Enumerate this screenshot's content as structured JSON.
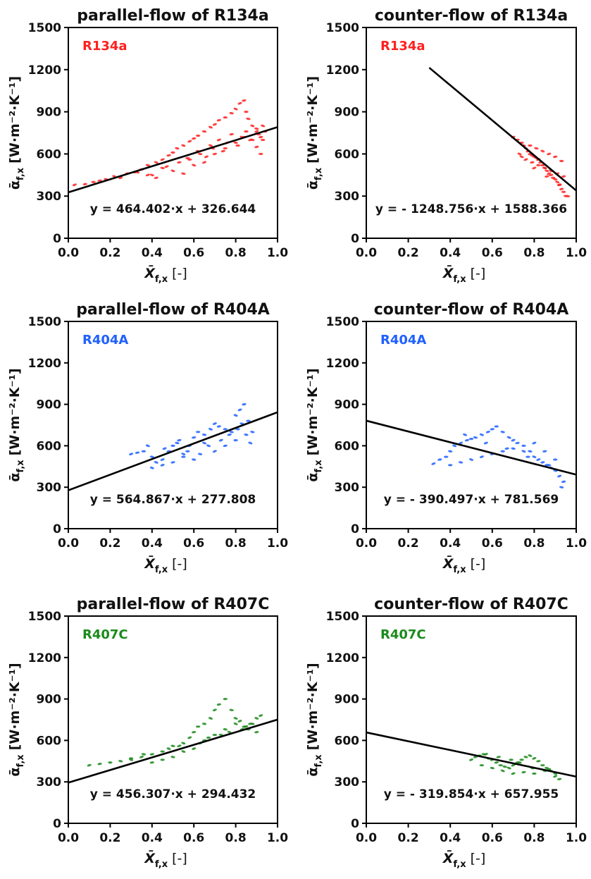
{
  "chart_data": [
    {
      "type": "scatter",
      "title": "parallel-flow of R134a",
      "legend": "R134a",
      "color": "#ff2020",
      "xlabel": "X̄",
      "xlabel_sub": "f,x",
      "xlabel_unit": "[-]",
      "ylabel": "ᾱ",
      "ylabel_sub": "f,x",
      "ylabel_unit": "[W·m⁻²·K⁻¹]",
      "xlim": [
        0,
        1
      ],
      "ylim": [
        0,
        1500
      ],
      "x_ticks": [
        "0.0",
        "0.2",
        "0.4",
        "0.6",
        "0.8",
        "1.0"
      ],
      "y_ticks": [
        "0",
        "300",
        "600",
        "900",
        "1200",
        "1500"
      ],
      "fit": {
        "slope": 464.402,
        "intercept": 326.644,
        "x_range": [
          0.0,
          1.0
        ]
      },
      "equation": "y = 464.402·x + 326.644",
      "series": [
        {
          "x": [
            0.03,
            0.08,
            0.12,
            0.18,
            0.22,
            0.28,
            0.32,
            0.35,
            0.38,
            0.42,
            0.45,
            0.48,
            0.5,
            0.52,
            0.55,
            0.58,
            0.6,
            0.62,
            0.65,
            0.68,
            0.7,
            0.72,
            0.75,
            0.78,
            0.8,
            0.82,
            0.84,
            0.85,
            0.86,
            0.88,
            0.9,
            0.92,
            0.93,
            0.55,
            0.6,
            0.65,
            0.7,
            0.75,
            0.8,
            0.83,
            0.87,
            0.9,
            0.92,
            0.45,
            0.5,
            0.38,
            0.42,
            0.58,
            0.62,
            0.68,
            0.72,
            0.78,
            0.85,
            0.9,
            0.93,
            0.66,
            0.74,
            0.81,
            0.88,
            0.33,
            0.47,
            0.53,
            0.57,
            0.63,
            0.69,
            0.76,
            0.84,
            0.91,
            0.94,
            0.4,
            0.25,
            0.15
          ],
          "y": [
            380,
            385,
            400,
            420,
            440,
            460,
            470,
            490,
            520,
            540,
            560,
            590,
            610,
            640,
            660,
            690,
            710,
            730,
            760,
            790,
            810,
            840,
            860,
            890,
            920,
            960,
            980,
            900,
            850,
            800,
            760,
            720,
            700,
            460,
            520,
            540,
            600,
            640,
            680,
            720,
            700,
            650,
            600,
            500,
            480,
            450,
            430,
            560,
            620,
            660,
            700,
            740,
            760,
            780,
            800,
            580,
            620,
            660,
            700,
            470,
            510,
            540,
            570,
            600,
            640,
            680,
            720,
            740,
            760,
            450,
            430,
            410
          ]
        }
      ]
    },
    {
      "type": "scatter",
      "title": "counter-flow of R134a",
      "legend": "R134a",
      "color": "#ff2020",
      "xlabel": "X̄",
      "xlabel_sub": "f,x",
      "xlabel_unit": "[-]",
      "ylabel": "ᾱ",
      "ylabel_sub": "f,x",
      "ylabel_unit": "[W·m⁻²·K⁻¹]",
      "xlim": [
        0,
        1
      ],
      "ylim": [
        0,
        1500
      ],
      "x_ticks": [
        "0.0",
        "0.2",
        "0.4",
        "0.6",
        "0.8",
        "1.0"
      ],
      "y_ticks": [
        "0",
        "300",
        "600",
        "900",
        "1200",
        "1500"
      ],
      "fit": {
        "slope": -1248.756,
        "intercept": 1588.366,
        "x_range": [
          0.3,
          1.0
        ]
      },
      "equation": "y = - 1248.756·x + 1588.366",
      "series": [
        {
          "x": [
            0.7,
            0.72,
            0.74,
            0.75,
            0.76,
            0.77,
            0.78,
            0.79,
            0.8,
            0.81,
            0.82,
            0.83,
            0.84,
            0.85,
            0.86,
            0.87,
            0.88,
            0.89,
            0.9,
            0.91,
            0.92,
            0.93,
            0.94,
            0.95,
            0.73,
            0.76,
            0.79,
            0.82,
            0.85,
            0.88,
            0.91,
            0.94,
            0.78,
            0.81,
            0.84,
            0.87,
            0.9,
            0.93,
            0.96,
            0.74,
            0.8,
            0.86,
            0.92
          ],
          "y": [
            720,
            700,
            680,
            660,
            640,
            620,
            600,
            590,
            580,
            570,
            560,
            540,
            520,
            500,
            480,
            460,
            450,
            430,
            420,
            400,
            380,
            350,
            330,
            300,
            600,
            560,
            540,
            520,
            500,
            480,
            460,
            440,
            660,
            640,
            620,
            600,
            580,
            550,
            300,
            580,
            500,
            440,
            380
          ]
        }
      ]
    },
    {
      "type": "scatter",
      "title": "parallel-flow of R404A",
      "legend": "R404A",
      "color": "#2060ff",
      "xlabel": "X̄",
      "xlabel_sub": "f,x",
      "xlabel_unit": "[-]",
      "ylabel": "ᾱ",
      "ylabel_sub": "f,x",
      "ylabel_unit": "[W·m⁻²·K⁻¹]",
      "xlim": [
        0,
        1
      ],
      "ylim": [
        0,
        1500
      ],
      "x_ticks": [
        "0.0",
        "0.2",
        "0.4",
        "0.6",
        "0.8",
        "1.0"
      ],
      "y_ticks": [
        "0",
        "300",
        "600",
        "900",
        "1200",
        "1500"
      ],
      "fit": {
        "slope": 564.867,
        "intercept": 277.808,
        "x_range": [
          0.0,
          1.0
        ]
      },
      "equation": "y = 564.867·x + 277.808",
      "series": [
        {
          "x": [
            0.3,
            0.33,
            0.36,
            0.4,
            0.42,
            0.45,
            0.48,
            0.5,
            0.52,
            0.55,
            0.58,
            0.6,
            0.62,
            0.65,
            0.68,
            0.7,
            0.72,
            0.75,
            0.78,
            0.8,
            0.82,
            0.84,
            0.86,
            0.88,
            0.4,
            0.45,
            0.5,
            0.55,
            0.6,
            0.65,
            0.7,
            0.75,
            0.8,
            0.85,
            0.38,
            0.46,
            0.53,
            0.57,
            0.63,
            0.67,
            0.73,
            0.77,
            0.81,
            0.83,
            0.87
          ],
          "y": [
            540,
            550,
            560,
            520,
            480,
            500,
            560,
            600,
            620,
            540,
            600,
            660,
            700,
            680,
            720,
            760,
            740,
            720,
            700,
            820,
            860,
            900,
            780,
            700,
            440,
            460,
            480,
            520,
            500,
            620,
            560,
            600,
            640,
            680,
            600,
            580,
            640,
            560,
            540,
            600,
            640,
            680,
            720,
            760,
            620
          ]
        }
      ]
    },
    {
      "type": "scatter",
      "title": "counter-flow of R404A",
      "legend": "R404A",
      "color": "#2060ff",
      "xlabel": "X̄",
      "xlabel_sub": "f,x",
      "xlabel_unit": "[-]",
      "ylabel": "ᾱ",
      "ylabel_sub": "f,x",
      "ylabel_unit": "[W·m⁻²·K⁻¹]",
      "xlim": [
        0,
        1
      ],
      "ylim": [
        0,
        1500
      ],
      "x_ticks": [
        "0.0",
        "0.2",
        "0.4",
        "0.6",
        "0.8",
        "1.0"
      ],
      "y_ticks": [
        "0",
        "300",
        "600",
        "900",
        "1200",
        "1500"
      ],
      "fit": {
        "slope": -390.497,
        "intercept": 781.569,
        "x_range": [
          0.0,
          1.0
        ]
      },
      "equation": "y = - 390.497·x + 781.569",
      "series": [
        {
          "x": [
            0.32,
            0.35,
            0.38,
            0.4,
            0.42,
            0.45,
            0.48,
            0.5,
            0.52,
            0.55,
            0.58,
            0.6,
            0.62,
            0.65,
            0.68,
            0.7,
            0.72,
            0.75,
            0.78,
            0.8,
            0.82,
            0.84,
            0.86,
            0.88,
            0.9,
            0.92,
            0.94,
            0.4,
            0.45,
            0.5,
            0.55,
            0.6,
            0.65,
            0.7,
            0.75,
            0.8,
            0.85,
            0.9,
            0.93,
            0.47,
            0.57,
            0.67,
            0.77,
            0.87
          ],
          "y": [
            470,
            500,
            520,
            560,
            600,
            620,
            640,
            650,
            660,
            680,
            700,
            720,
            740,
            700,
            660,
            640,
            620,
            600,
            560,
            520,
            500,
            480,
            460,
            440,
            420,
            380,
            340,
            460,
            480,
            500,
            520,
            540,
            560,
            580,
            560,
            620,
            560,
            500,
            300,
            680,
            620,
            580,
            520,
            460
          ]
        }
      ]
    },
    {
      "type": "scatter",
      "title": "parallel-flow of R407C",
      "legend": "R407C",
      "color": "#1a8a1a",
      "xlabel": "X̄",
      "xlabel_sub": "f,x",
      "xlabel_unit": "[-]",
      "ylabel": "ᾱ",
      "ylabel_sub": "f,x",
      "ylabel_unit": "[W·m⁻²·K⁻¹]",
      "xlim": [
        0,
        1
      ],
      "ylim": [
        0,
        1500
      ],
      "x_ticks": [
        "0.0",
        "0.2",
        "0.4",
        "0.6",
        "0.8",
        "1.0"
      ],
      "y_ticks": [
        "0",
        "300",
        "600",
        "900",
        "1200",
        "1500"
      ],
      "fit": {
        "slope": 456.307,
        "intercept": 294.432,
        "x_range": [
          0.0,
          1.0
        ]
      },
      "equation": "y = 456.307·x + 294.432",
      "series": [
        {
          "x": [
            0.1,
            0.15,
            0.2,
            0.25,
            0.3,
            0.35,
            0.4,
            0.45,
            0.5,
            0.55,
            0.58,
            0.6,
            0.62,
            0.65,
            0.68,
            0.7,
            0.72,
            0.75,
            0.78,
            0.8,
            0.82,
            0.84,
            0.86,
            0.88,
            0.9,
            0.92,
            0.4,
            0.45,
            0.5,
            0.55,
            0.6,
            0.65,
            0.7,
            0.75,
            0.8,
            0.85,
            0.9,
            0.3,
            0.36,
            0.48,
            0.53,
            0.63,
            0.67,
            0.73,
            0.77,
            0.83,
            0.87
          ],
          "y": [
            420,
            430,
            440,
            450,
            460,
            480,
            500,
            520,
            560,
            580,
            620,
            660,
            700,
            720,
            760,
            820,
            860,
            900,
            820,
            760,
            740,
            700,
            680,
            720,
            760,
            780,
            440,
            460,
            480,
            520,
            540,
            600,
            640,
            680,
            720,
            700,
            660,
            470,
            500,
            540,
            560,
            580,
            620,
            640,
            660,
            680,
            720
          ]
        }
      ]
    },
    {
      "type": "scatter",
      "title": "counter-flow of R407C",
      "legend": "R407C",
      "color": "#1a8a1a",
      "xlabel": "X̄",
      "xlabel_sub": "f,x",
      "xlabel_unit": "[-]",
      "ylabel": "ᾱ",
      "ylabel_sub": "f,x",
      "ylabel_unit": "[W·m⁻²·K⁻¹]",
      "xlim": [
        0,
        1
      ],
      "ylim": [
        0,
        1500
      ],
      "x_ticks": [
        "0.0",
        "0.2",
        "0.4",
        "0.6",
        "0.8",
        "1.0"
      ],
      "y_ticks": [
        "0",
        "300",
        "600",
        "900",
        "1200",
        "1500"
      ],
      "fit": {
        "slope": -319.854,
        "intercept": 657.955,
        "x_range": [
          0.0,
          1.0
        ]
      },
      "equation": "y = - 319.854·x + 657.955",
      "series": [
        {
          "x": [
            0.5,
            0.52,
            0.54,
            0.56,
            0.58,
            0.6,
            0.62,
            0.64,
            0.66,
            0.68,
            0.7,
            0.72,
            0.74,
            0.76,
            0.78,
            0.8,
            0.82,
            0.84,
            0.86,
            0.88,
            0.9,
            0.92,
            0.55,
            0.6,
            0.65,
            0.7,
            0.75,
            0.8,
            0.85,
            0.9,
            0.57,
            0.63,
            0.69,
            0.73,
            0.79,
            0.87
          ],
          "y": [
            460,
            480,
            490,
            500,
            470,
            460,
            440,
            420,
            410,
            400,
            420,
            440,
            460,
            480,
            490,
            470,
            450,
            420,
            400,
            380,
            340,
            320,
            420,
            400,
            380,
            360,
            370,
            360,
            380,
            360,
            500,
            480,
            460,
            440,
            400,
            390
          ]
        }
      ]
    }
  ]
}
